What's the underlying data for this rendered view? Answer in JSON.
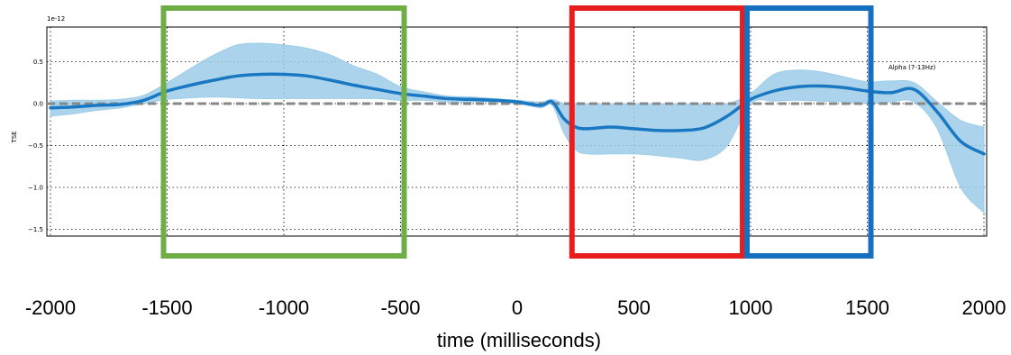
{
  "chart_data": {
    "type": "line",
    "title": "",
    "scale_label": "1e-12",
    "ylabel": "TSE",
    "xlabel": "time (milliseconds)",
    "xlim": [
      -2000,
      2000
    ],
    "ylim": [
      -1.6,
      0.85
    ],
    "x_ticks": [
      "-2000",
      "-1500",
      "-1000",
      "-500",
      "0",
      "500",
      "1000",
      "1500",
      "2000"
    ],
    "x_tick_values": [
      -2000,
      -1500,
      -1000,
      -500,
      0,
      500,
      1000,
      1500,
      2000
    ],
    "y_ticks": [
      "0.5",
      "0.0",
      "−0.5",
      "−1.0",
      "−1.5"
    ],
    "y_tick_values": [
      0.5,
      0.0,
      -0.5,
      -1.0,
      -1.5
    ],
    "grid": true,
    "legend": "Alpha (7-13Hz)",
    "series": [
      {
        "name": "Alpha (7-13Hz)",
        "color": "#1a78c2",
        "band_color": "#9ccde9",
        "x": [
          -2000,
          -1900,
          -1800,
          -1700,
          -1600,
          -1500,
          -1400,
          -1300,
          -1200,
          -1100,
          -1000,
          -900,
          -800,
          -700,
          -600,
          -500,
          -400,
          -300,
          -200,
          -100,
          0,
          100,
          150,
          200,
          250,
          300,
          400,
          500,
          600,
          700,
          800,
          900,
          1000,
          1100,
          1200,
          1300,
          1400,
          1500,
          1600,
          1700,
          1800,
          1900,
          2000
        ],
        "mean": [
          -0.05,
          -0.04,
          -0.02,
          -0.01,
          0.04,
          0.15,
          0.22,
          0.28,
          0.33,
          0.35,
          0.35,
          0.33,
          0.28,
          0.22,
          0.17,
          0.12,
          0.09,
          0.06,
          0.05,
          0.04,
          0.02,
          -0.02,
          0.02,
          -0.18,
          -0.28,
          -0.3,
          -0.28,
          -0.3,
          -0.32,
          -0.32,
          -0.29,
          -0.15,
          0.05,
          0.15,
          0.2,
          0.21,
          0.19,
          0.15,
          0.13,
          0.17,
          -0.1,
          -0.45,
          -0.6
        ],
        "upper": [
          0.03,
          0.04,
          0.04,
          0.05,
          0.1,
          0.25,
          0.42,
          0.58,
          0.7,
          0.72,
          0.7,
          0.66,
          0.58,
          0.45,
          0.35,
          0.2,
          0.14,
          0.09,
          0.08,
          0.06,
          0.04,
          0.02,
          0.05,
          0.0,
          0.0,
          0.0,
          0.0,
          0.0,
          0.0,
          0.0,
          0.0,
          0.0,
          0.12,
          0.35,
          0.4,
          0.38,
          0.32,
          0.26,
          0.27,
          0.25,
          0.02,
          -0.2,
          -0.28
        ],
        "lower": [
          -0.15,
          -0.12,
          -0.08,
          -0.05,
          0.0,
          0.05,
          0.07,
          0.08,
          0.07,
          0.06,
          0.06,
          0.06,
          0.06,
          0.06,
          0.06,
          0.04,
          0.04,
          0.02,
          0.02,
          0.02,
          0.0,
          -0.05,
          -0.02,
          -0.35,
          -0.55,
          -0.6,
          -0.6,
          -0.6,
          -0.62,
          -0.65,
          -0.67,
          -0.5,
          0.0,
          0.03,
          0.04,
          0.03,
          0.02,
          0.0,
          0.02,
          0.02,
          -0.3,
          -1.0,
          -1.3
        ]
      }
    ],
    "reference_line": {
      "y": 0.0,
      "style": "dashed",
      "color": "#888888"
    },
    "highlight_boxes": [
      {
        "name": "green-box",
        "color": "#6fad47",
        "x_start": -1500,
        "x_end": -500
      },
      {
        "name": "red-box",
        "color": "#e61e1e",
        "x_start": 250,
        "x_end": 950
      },
      {
        "name": "blue-box",
        "color": "#1570c0",
        "x_start": 1000,
        "x_end": 1500
      }
    ]
  }
}
